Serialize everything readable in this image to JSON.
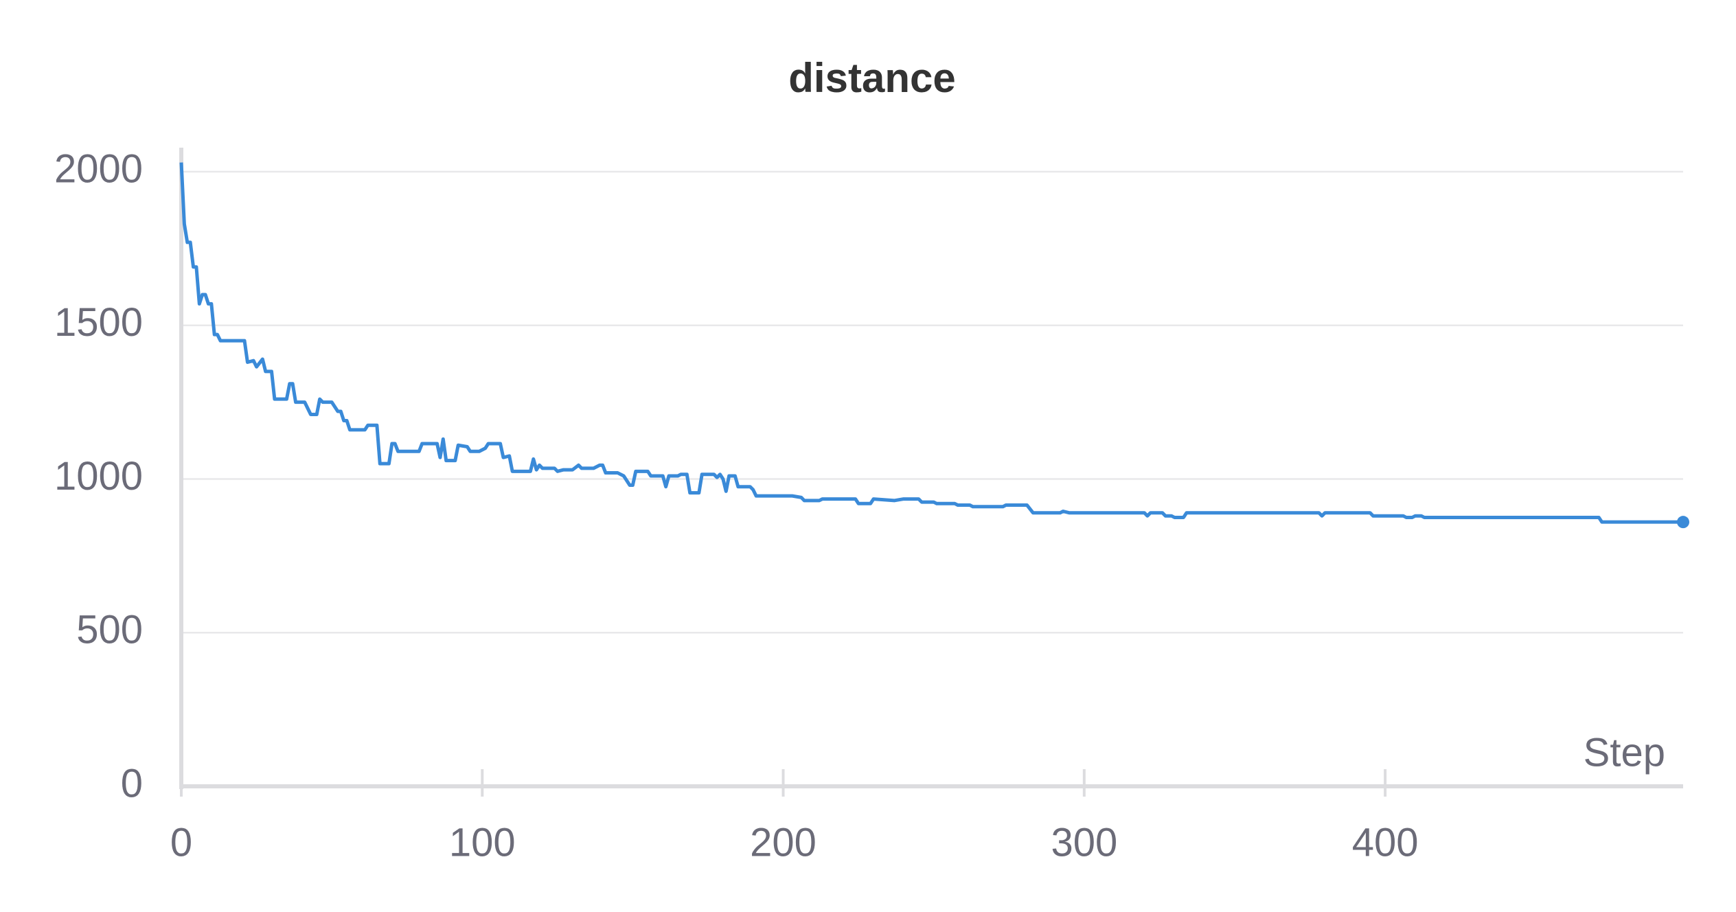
{
  "chart_data": {
    "type": "line",
    "title": "distance",
    "x_label": "Step",
    "x": [
      0,
      1,
      2,
      3,
      4,
      5,
      6,
      7,
      8,
      9,
      10,
      11,
      12,
      13,
      21,
      22,
      24,
      25,
      27,
      28,
      30,
      31,
      35,
      36,
      37,
      38,
      41,
      43,
      45,
      46,
      47,
      50,
      52,
      53,
      54,
      55,
      56,
      61,
      62,
      65,
      66,
      69,
      70,
      71,
      72,
      79,
      80,
      85,
      86,
      87,
      88,
      91,
      92,
      95,
      96,
      99,
      101,
      102,
      106,
      107,
      109,
      110,
      116,
      117,
      118,
      119,
      120,
      124,
      125,
      127,
      130,
      132,
      133,
      137,
      139,
      140,
      141,
      145,
      147,
      149,
      150,
      151,
      155,
      156,
      160,
      161,
      162,
      165,
      166,
      168,
      169,
      172,
      173,
      177,
      178,
      179,
      180,
      181,
      182,
      184,
      185,
      189,
      190,
      191,
      203,
      206,
      207,
      212,
      213,
      224,
      225,
      229,
      230,
      237,
      240,
      245,
      246,
      250,
      251,
      257,
      258,
      262,
      263,
      273,
      274,
      281,
      283,
      292,
      293,
      295,
      320,
      321,
      322,
      326,
      327,
      329,
      330,
      333,
      334,
      378,
      379,
      380,
      395,
      396,
      406,
      407,
      409,
      410,
      412,
      413,
      471,
      472,
      499
    ],
    "values": [
      2030,
      1830,
      1770,
      1770,
      1690,
      1690,
      1570,
      1600,
      1600,
      1570,
      1570,
      1470,
      1470,
      1450,
      1450,
      1380,
      1385,
      1365,
      1390,
      1350,
      1350,
      1260,
      1260,
      1310,
      1310,
      1250,
      1250,
      1210,
      1210,
      1260,
      1250,
      1250,
      1220,
      1220,
      1190,
      1190,
      1160,
      1160,
      1175,
      1175,
      1050,
      1050,
      1115,
      1115,
      1090,
      1090,
      1115,
      1115,
      1070,
      1130,
      1060,
      1060,
      1110,
      1105,
      1090,
      1090,
      1100,
      1115,
      1115,
      1070,
      1075,
      1025,
      1025,
      1065,
      1030,
      1045,
      1035,
      1035,
      1025,
      1030,
      1030,
      1045,
      1035,
      1035,
      1045,
      1045,
      1020,
      1020,
      1010,
      980,
      980,
      1025,
      1025,
      1010,
      1010,
      975,
      1010,
      1010,
      1015,
      1015,
      955,
      955,
      1015,
      1015,
      1005,
      1015,
      1000,
      960,
      1010,
      1010,
      975,
      975,
      965,
      945,
      945,
      940,
      930,
      930,
      935,
      935,
      920,
      920,
      935,
      930,
      935,
      935,
      925,
      925,
      920,
      920,
      915,
      915,
      910,
      910,
      915,
      915,
      890,
      890,
      895,
      890,
      890,
      880,
      890,
      890,
      880,
      880,
      875,
      875,
      890,
      890,
      880,
      890,
      890,
      880,
      880,
      875,
      875,
      880,
      880,
      875,
      875,
      860,
      860
    ],
    "color": "#3a8ad8",
    "xlim": [
      0,
      499
    ],
    "xticks": [
      0,
      100,
      200,
      300,
      400
    ],
    "ylim": [
      0,
      2000
    ],
    "yticks": [
      0,
      500,
      1000,
      1500,
      2000
    ],
    "grid": true
  }
}
